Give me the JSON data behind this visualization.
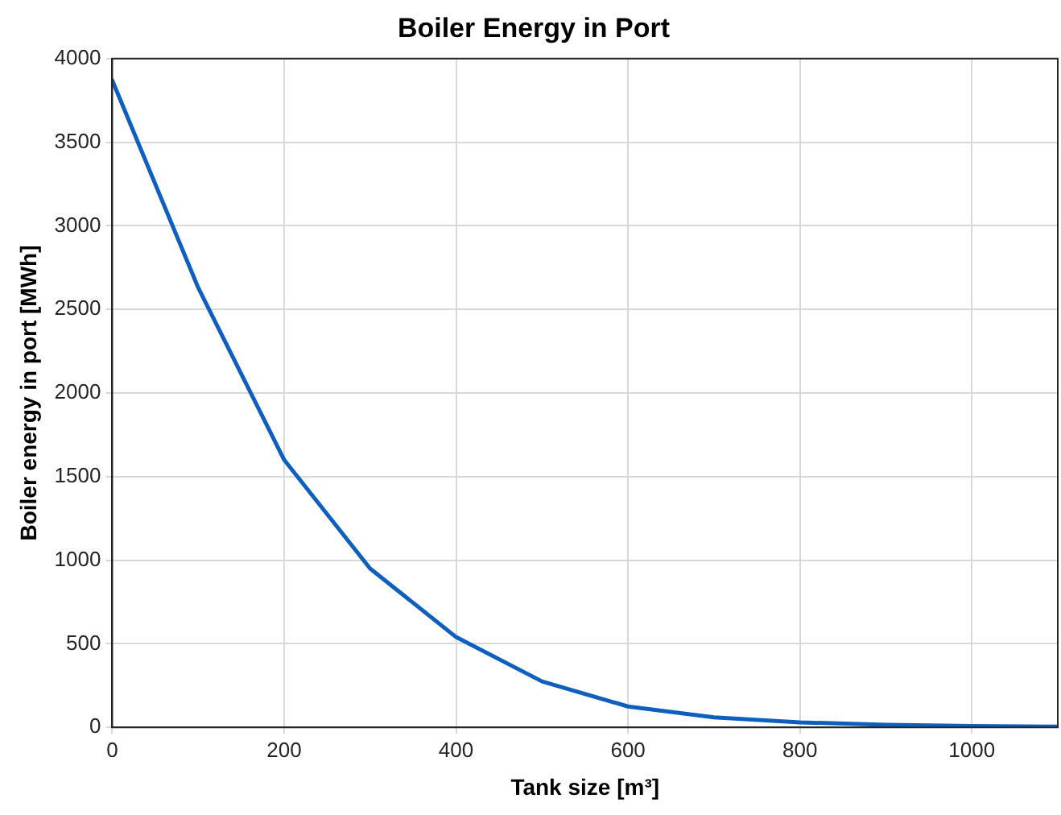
{
  "chart_data": {
    "type": "line",
    "title": "Boiler Energy in Port",
    "xlabel": "Tank size [m³]",
    "ylabel": "Boiler energy in port [MWh]",
    "x": [
      0,
      100,
      200,
      300,
      400,
      500,
      600,
      700,
      800,
      900,
      1000,
      1100
    ],
    "series": [
      {
        "color": "#0f5fbf",
        "values": [
          3870,
          2630,
          1600,
          950,
          540,
          275,
          125,
          60,
          30,
          15,
          8,
          5
        ]
      }
    ],
    "xlim": [
      0,
      1100
    ],
    "xticks": [
      0,
      200,
      400,
      600,
      800,
      1000
    ],
    "ylim": [
      0,
      4000
    ],
    "yticks": [
      0,
      500,
      1000,
      1500,
      2000,
      2500,
      3000,
      3500,
      4000
    ],
    "grid": true,
    "legend": false,
    "marker": "none",
    "line_style": "solid"
  }
}
